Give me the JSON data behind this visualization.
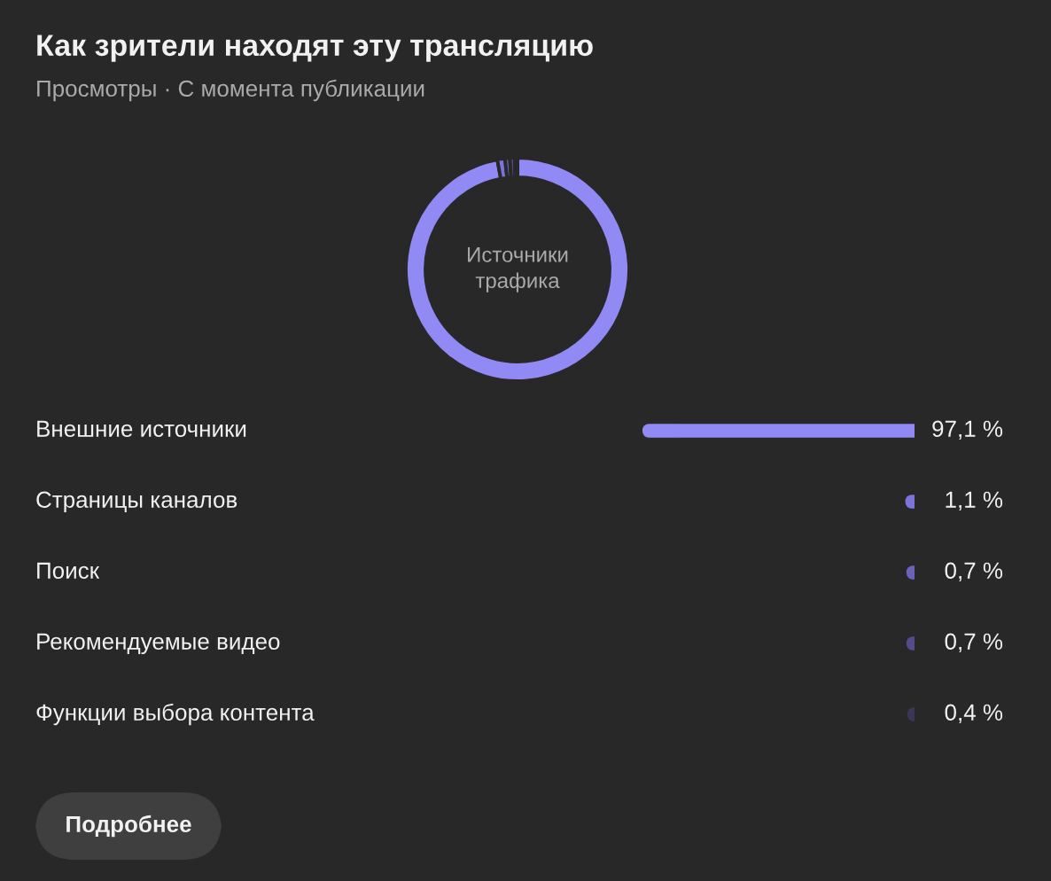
{
  "chart_data": [
    {
      "type": "donut",
      "title": "Как зрители находят эту трансляцию",
      "subtitle": "Просмотры · С момента публикации",
      "annotations": [
        "Источники\nтрафика"
      ],
      "categories": [
        null,
        null,
        null,
        null,
        null
      ],
      "values": [
        97.1,
        1.1,
        0.7,
        0.7,
        0.4
      ],
      "colors": [
        "#918af5",
        "#7c74d8",
        "#6b63b8",
        "#534b8a",
        "#3b3658"
      ]
    },
    {
      "type": "bar",
      "orientation": "horizontal",
      "categories": [
        "Внешние источники",
        "Страницы каналов",
        "Поиск",
        "Рекомендуемые видео",
        "Функции выбора контента"
      ],
      "values": [
        97.1,
        1.1,
        0.7,
        0.7,
        0.4
      ],
      "colors": [
        "#918af5",
        "#7c74d8",
        "#6b63b8",
        "#534b8a",
        "#3b3658"
      ],
      "value_labels": [
        "97,1 %",
        "1,1 %",
        "0,7 %",
        "0,7 %",
        "0,4 %"
      ],
      "annotations": [
        "Подробнее"
      ]
    }
  ]
}
